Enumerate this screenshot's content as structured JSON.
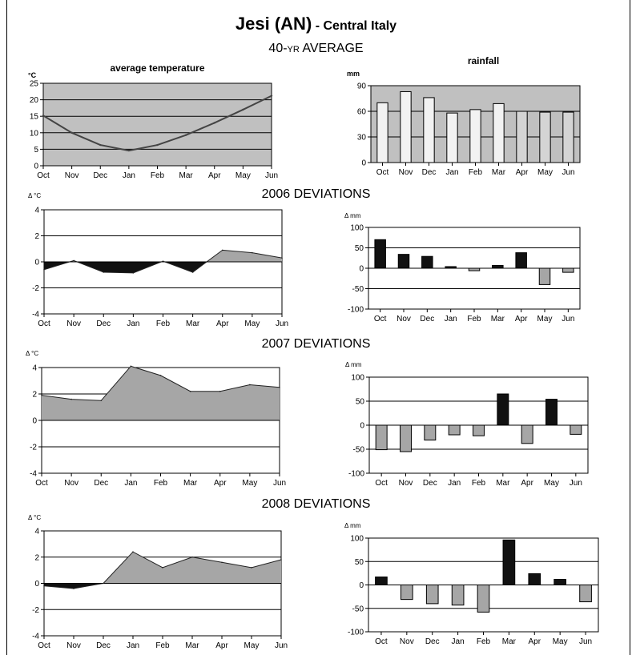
{
  "page": {
    "title_main": "Jesi (AN)",
    "title_sub": "- Central Italy",
    "sections": {
      "average_a": "40-",
      "average_b": "YR",
      "average_c": " AVERAGE",
      "dev2006": "2006 DEVIATIONS",
      "dev2007": "2007 DEVIATIONS",
      "dev2008": "2008 DEVIATIONS"
    }
  },
  "colors": {
    "plot_bg": "#c0c0c0",
    "area_positive": "#a6a6a6",
    "area_negative": "#111111",
    "bar_positive": "#111111",
    "bar_negative": "#a6a6a6",
    "bar_average_light": "#f2f2f2",
    "bar_average_gray": "#d4d4d4",
    "line": "#444444"
  },
  "chart_data": [
    {
      "id": "avg_temp",
      "type": "line",
      "title": "average temperature",
      "ylabel": "°C",
      "categories": [
        "Oct",
        "Nov",
        "Dec",
        "Jan",
        "Feb",
        "Mar",
        "Apr",
        "May",
        "Jun"
      ],
      "x": [
        0,
        1,
        2,
        3,
        4,
        5,
        6,
        7,
        8
      ],
      "values": [
        15.2,
        10,
        6.3,
        4.6,
        6.3,
        9.3,
        13,
        17,
        21.2
      ],
      "ylim": [
        0,
        25
      ],
      "yticks": [
        0,
        5,
        10,
        15,
        20,
        25
      ],
      "grid": true
    },
    {
      "id": "avg_rain",
      "type": "bar",
      "title": "rainfall",
      "ylabel": "mm",
      "categories": [
        "Oct",
        "Nov",
        "Dec",
        "Jan",
        "Feb",
        "Mar",
        "Apr",
        "May",
        "Jun"
      ],
      "values": [
        70,
        83,
        76,
        58,
        62,
        69,
        60,
        59,
        59
      ],
      "ylim": [
        0,
        90
      ],
      "yticks": [
        0,
        30,
        60,
        90
      ],
      "grid": true
    },
    {
      "id": "dev2006_temp",
      "type": "area",
      "ylabel": "Δ °C",
      "categories": [
        "Oct",
        "Nov",
        "Dec",
        "Jan",
        "Feb",
        "Mar",
        "Apr",
        "May",
        "Jun"
      ],
      "x": [
        0,
        1,
        2,
        3,
        4,
        5,
        6,
        7,
        8
      ],
      "values": [
        -0.6,
        0.1,
        -0.8,
        -0.85,
        0.05,
        -0.8,
        0.9,
        0.7,
        0.3
      ],
      "ylim": [
        -4,
        4
      ],
      "yticks": [
        -4,
        -2,
        0,
        2,
        4
      ],
      "grid": true
    },
    {
      "id": "dev2006_rain",
      "type": "bar",
      "ylabel": "Δ mm",
      "categories": [
        "Oct",
        "Nov",
        "Dec",
        "Jan",
        "Feb",
        "Mar",
        "Apr",
        "May",
        "Jun"
      ],
      "values": [
        70,
        34,
        29,
        4,
        -6,
        7,
        38,
        -40,
        -10
      ],
      "ylim": [
        -100,
        100
      ],
      "yticks": [
        -100,
        -50,
        0,
        50,
        100
      ],
      "grid": true
    },
    {
      "id": "dev2007_temp",
      "type": "area",
      "ylabel": "Δ °C",
      "categories": [
        "Oct",
        "Nov",
        "Dec",
        "Jan",
        "Feb",
        "Mar",
        "Apr",
        "May",
        "Jun"
      ],
      "x": [
        0,
        1,
        2,
        3,
        4,
        5,
        6,
        7,
        8
      ],
      "values": [
        1.9,
        1.6,
        1.5,
        4.1,
        3.4,
        2.2,
        2.2,
        2.7,
        2.5
      ],
      "ylim": [
        -4,
        4
      ],
      "yticks": [
        -4,
        -2,
        0,
        2,
        4
      ],
      "grid": true
    },
    {
      "id": "dev2007_rain",
      "type": "bar",
      "ylabel": "Δ mm",
      "categories": [
        "Oct",
        "Nov",
        "Dec",
        "Jan",
        "Feb",
        "Mar",
        "Apr",
        "May",
        "Jun"
      ],
      "values": [
        -51,
        -55,
        -31,
        -20,
        -22,
        65,
        -38,
        54,
        -19
      ],
      "ylim": [
        -100,
        100
      ],
      "yticks": [
        -100,
        -50,
        0,
        50,
        100
      ],
      "grid": true
    },
    {
      "id": "dev2008_temp",
      "type": "area",
      "ylabel": "Δ °C",
      "categories": [
        "Oct",
        "Nov",
        "Dec",
        "Jan",
        "Feb",
        "Mar",
        "Apr",
        "May",
        "Jun"
      ],
      "x": [
        0,
        1,
        2,
        3,
        4,
        5,
        6,
        7,
        8
      ],
      "values": [
        -0.2,
        -0.4,
        0,
        2.4,
        1.2,
        2.0,
        1.6,
        1.2,
        1.8
      ],
      "ylim": [
        -4,
        4
      ],
      "yticks": [
        -4,
        -2,
        0,
        2,
        4
      ],
      "grid": true
    },
    {
      "id": "dev2008_rain",
      "type": "bar",
      "ylabel": "Δ mm",
      "categories": [
        "Oct",
        "Nov",
        "Dec",
        "Jan",
        "Feb",
        "Mar",
        "Apr",
        "May",
        "Jun"
      ],
      "values": [
        17,
        -31,
        -40,
        -43,
        -58,
        96,
        24,
        12,
        -36
      ],
      "ylim": [
        -100,
        100
      ],
      "yticks": [
        -100,
        -50,
        0,
        50,
        100
      ],
      "grid": true
    }
  ]
}
